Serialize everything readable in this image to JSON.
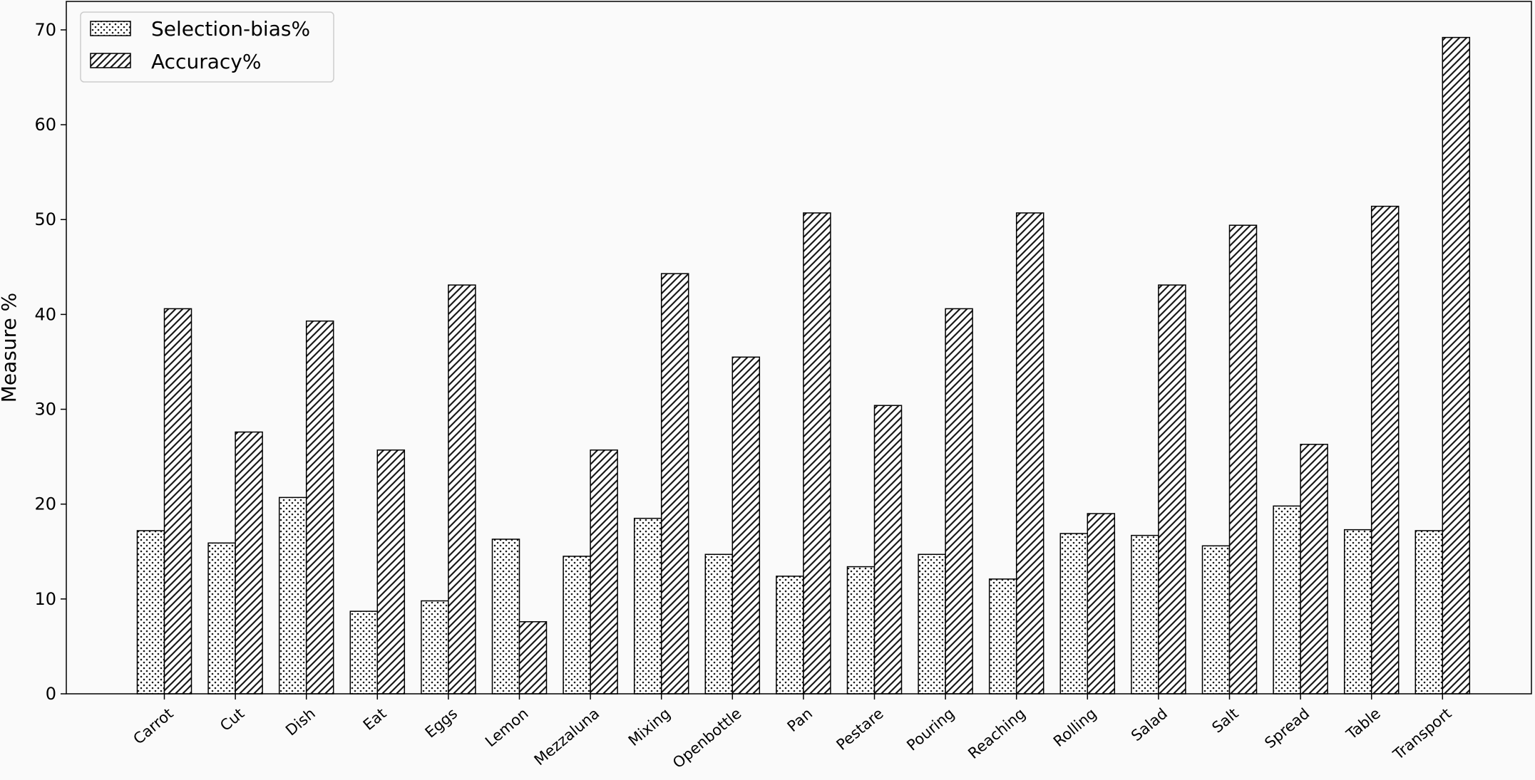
{
  "chart_data": {
    "type": "bar",
    "title": "",
    "xlabel": "",
    "ylabel": "Measure %",
    "ylim": [
      0,
      73
    ],
    "yticks": [
      0,
      10,
      20,
      30,
      40,
      50,
      60,
      70
    ],
    "grid": false,
    "legend_position": "top-left",
    "categories": [
      "Carrot",
      "Cut",
      "Dish",
      "Eat",
      "Eggs",
      "Lemon",
      "Mezzaluna",
      "Mixing",
      "Openbottle",
      "Pan",
      "Pestare",
      "Pouring",
      "Reaching",
      "Rolling",
      "Salad",
      "Salt",
      "Spread",
      "Table",
      "Transport"
    ],
    "series": [
      {
        "name": "Selection-bias%",
        "pattern": "dots",
        "values": [
          17.2,
          15.9,
          20.7,
          8.7,
          9.8,
          16.3,
          14.5,
          18.5,
          14.7,
          12.4,
          13.4,
          14.7,
          12.1,
          16.9,
          16.7,
          15.6,
          19.8,
          17.3,
          17.2
        ]
      },
      {
        "name": "Accuracy%",
        "pattern": "diagonal-hatch",
        "values": [
          40.6,
          27.6,
          39.3,
          25.7,
          43.1,
          7.6,
          25.7,
          44.3,
          35.5,
          50.7,
          30.4,
          40.6,
          50.7,
          19.0,
          43.1,
          49.4,
          26.3,
          51.4,
          69.2
        ]
      }
    ],
    "colors": {
      "bar_fill": "#ffffff",
      "pattern": "#1a1a1a",
      "edge": "#000000",
      "background": "#fafafa"
    }
  }
}
